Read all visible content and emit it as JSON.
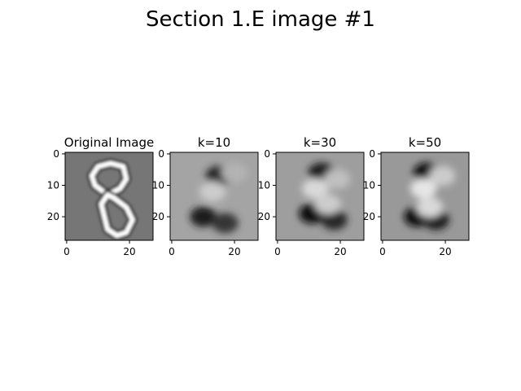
{
  "figure": {
    "title": "Section 1.E image #1"
  },
  "chart_data": [
    {
      "type": "heatmap",
      "title": "Original Image",
      "colormap": "gray",
      "xlim": [
        -0.5,
        27.5
      ],
      "ylim": [
        27.5,
        -0.5
      ],
      "xticks": [
        0,
        20
      ],
      "yticks": [
        0,
        10,
        20
      ],
      "background": "#767676",
      "strokes": [
        {
          "points": [
            [
              14,
              3
            ],
            [
              10,
              4
            ],
            [
              8,
              7
            ],
            [
              9,
              10
            ],
            [
              13,
              13
            ],
            [
              17,
              11
            ],
            [
              19,
              8
            ],
            [
              18,
              4
            ],
            [
              14,
              3
            ]
          ],
          "value": 1.0
        },
        {
          "points": [
            [
              13,
              13
            ],
            [
              11,
              16
            ],
            [
              12,
              20
            ],
            [
              13,
              24
            ],
            [
              16,
              26
            ],
            [
              19,
              25
            ],
            [
              21,
              21
            ],
            [
              19,
              17
            ],
            [
              15,
              14
            ],
            [
              13,
              13
            ]
          ],
          "value": 1.0
        }
      ]
    },
    {
      "type": "heatmap",
      "title": "k=10",
      "colormap": "gray",
      "xlim": [
        -0.5,
        27.5
      ],
      "ylim": [
        27.5,
        -0.5
      ],
      "xticks": [
        0,
        20
      ],
      "yticks": [
        0,
        10,
        20
      ],
      "background": "#a4a4a4",
      "blobs": [
        {
          "x": 15,
          "y": 7,
          "value": -0.7
        },
        {
          "x": 10,
          "y": 20,
          "value": -0.8
        },
        {
          "x": 17,
          "y": 22,
          "value": -0.6
        },
        {
          "x": 13,
          "y": 12,
          "value": 0.6
        },
        {
          "x": 20,
          "y": 6,
          "value": 0.4
        }
      ]
    },
    {
      "type": "heatmap",
      "title": "k=30",
      "colormap": "gray",
      "xlim": [
        -0.5,
        27.5
      ],
      "ylim": [
        27.5,
        -0.5
      ],
      "xticks": [
        0,
        20
      ],
      "yticks": [
        0,
        10,
        20
      ],
      "background": "#9e9e9e",
      "blobs": [
        {
          "x": 14,
          "y": 6,
          "value": -0.8
        },
        {
          "x": 11,
          "y": 19,
          "value": -0.9
        },
        {
          "x": 18,
          "y": 21,
          "value": -0.7
        },
        {
          "x": 12,
          "y": 11,
          "value": 0.7
        },
        {
          "x": 16,
          "y": 16,
          "value": 0.6
        },
        {
          "x": 19,
          "y": 8,
          "value": 0.5
        }
      ]
    },
    {
      "type": "heatmap",
      "title": "k=50",
      "colormap": "gray",
      "xlim": [
        -0.5,
        27.5
      ],
      "ylim": [
        27.5,
        -0.5
      ],
      "xticks": [
        0,
        20
      ],
      "yticks": [
        0,
        10,
        20
      ],
      "background": "#999999",
      "blobs": [
        {
          "x": 14,
          "y": 6,
          "value": -0.9
        },
        {
          "x": 11,
          "y": 20,
          "value": -0.9
        },
        {
          "x": 17,
          "y": 21,
          "value": -0.8
        },
        {
          "x": 13,
          "y": 11,
          "value": 0.8
        },
        {
          "x": 15,
          "y": 17,
          "value": 0.7
        },
        {
          "x": 19,
          "y": 7,
          "value": 0.6
        }
      ]
    }
  ]
}
